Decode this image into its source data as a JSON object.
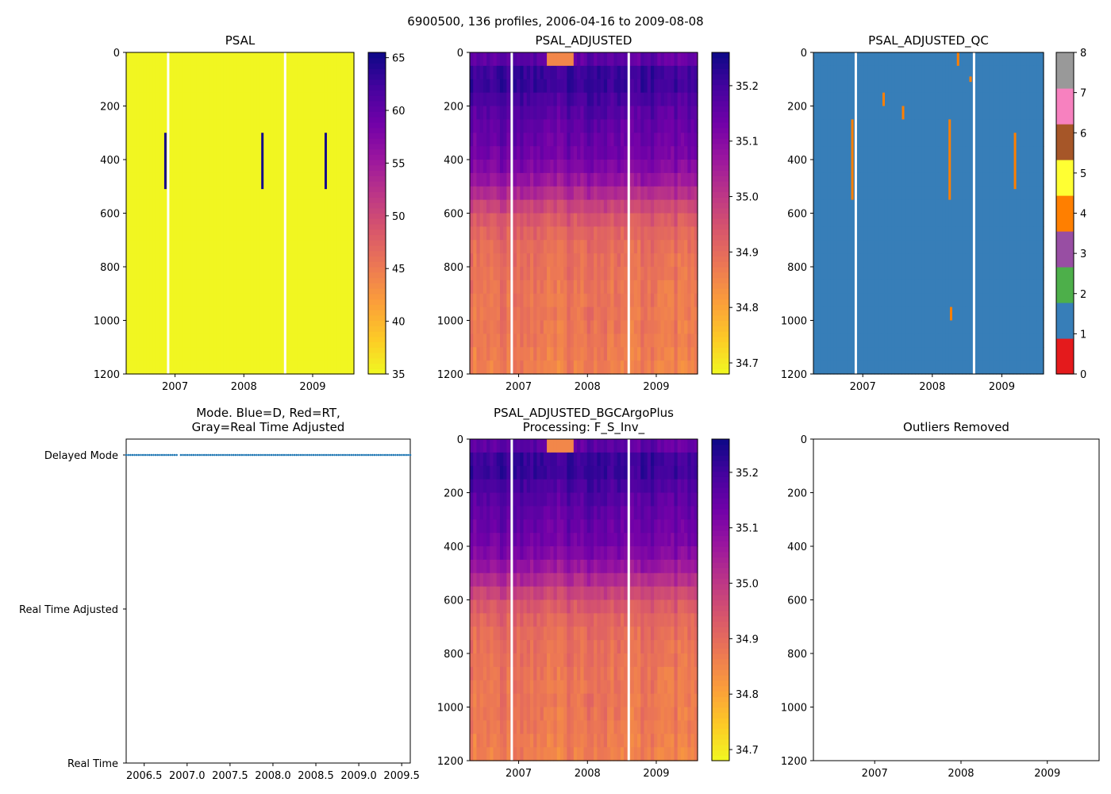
{
  "chart_data": {
    "suptitle": "6900500, 136 profiles, 2006-04-16 to 2009-08-08",
    "colormaps": {
      "plasma_r": [
        "#f0f921",
        "#fdca26",
        "#fb9f3a",
        "#ed7953",
        "#d8576b",
        "#bd3786",
        "#9c179e",
        "#7201a8",
        "#46039f",
        "#0d0887"
      ],
      "qc": [
        "#e41a1c",
        "#377eb8",
        "#4daf4a",
        "#984ea3",
        "#ff7f00",
        "#ffff33",
        "#a65628",
        "#f781bf",
        "#999999"
      ]
    },
    "panels": [
      {
        "id": "psal",
        "type": "heatmap",
        "title": "PSAL",
        "ylim": [
          1200,
          0
        ],
        "yticks": [
          "0",
          "200",
          "400",
          "600",
          "800",
          "1000",
          "1200"
        ],
        "xlim": [
          2006.29,
          2009.6
        ],
        "xticks": [
          "2007",
          "2008",
          "2009"
        ],
        "xtick_values": [
          2007,
          2008,
          2009
        ],
        "fill_value": 35.2,
        "gaps_x": [
          2006.9,
          2008.6
        ],
        "spikes": [
          {
            "x": 2006.86,
            "depth": [
              300,
              510
            ],
            "value": 65
          },
          {
            "x": 2008.27,
            "depth": [
              300,
              510
            ],
            "value": 65
          },
          {
            "x": 2009.19,
            "depth": [
              300,
              510
            ],
            "value": 65
          }
        ],
        "colorbar": {
          "cmap": "plasma_r",
          "vmin": 35,
          "vmax": 65.5,
          "ticks": [
            35,
            40,
            45,
            50,
            55,
            60,
            65
          ],
          "tick_labels": [
            "35",
            "40",
            "45",
            "50",
            "55",
            "60",
            "65"
          ]
        }
      },
      {
        "id": "psal_adjusted",
        "type": "heatmap",
        "title": "PSAL_ADJUSTED",
        "ylim": [
          1200,
          0
        ],
        "yticks": [
          "0",
          "200",
          "400",
          "600",
          "800",
          "1000",
          "1200"
        ],
        "xlim": [
          2006.29,
          2009.6
        ],
        "xticks": [
          "2007",
          "2008",
          "2009"
        ],
        "xtick_values": [
          2007,
          2008,
          2009
        ],
        "profile_depths": [
          0,
          50,
          100,
          150,
          250,
          350,
          450,
          500,
          550,
          600,
          650,
          700,
          800,
          900,
          1000,
          1100,
          1200
        ],
        "profile_values": [
          35.12,
          35.2,
          35.22,
          35.2,
          35.16,
          35.14,
          35.1,
          35.05,
          35.0,
          34.95,
          34.92,
          34.9,
          34.89,
          34.88,
          34.88,
          34.87,
          34.86
        ],
        "gaps_x": [
          2006.9,
          2008.6
        ],
        "colorbar": {
          "cmap": "plasma_r",
          "vmin": 34.68,
          "vmax": 35.26,
          "ticks": [
            34.7,
            34.8,
            34.9,
            35.0,
            35.1,
            35.2
          ],
          "tick_labels": [
            "34.7",
            "34.8",
            "34.9",
            "35.0",
            "35.1",
            "35.2"
          ]
        }
      },
      {
        "id": "psal_adjusted_qc",
        "type": "heatmap",
        "title": "PSAL_ADJUSTED_QC",
        "ylim": [
          1200,
          0
        ],
        "yticks": [
          "0",
          "200",
          "400",
          "600",
          "800",
          "1000",
          "1200"
        ],
        "xlim": [
          2006.29,
          2009.6
        ],
        "xticks": [
          "2007",
          "2008",
          "2009"
        ],
        "xtick_values": [
          2007,
          2008,
          2009
        ],
        "fill_value": 1,
        "gaps_x": [
          2006.9,
          2008.6
        ],
        "flags": [
          {
            "x": 2006.85,
            "depth": [
              250,
              550
            ],
            "value": 4
          },
          {
            "x": 2007.3,
            "depth": [
              150,
              200
            ],
            "value": 4
          },
          {
            "x": 2007.58,
            "depth": [
              200,
              250
            ],
            "value": 4
          },
          {
            "x": 2008.25,
            "depth": [
              250,
              550
            ],
            "value": 4
          },
          {
            "x": 2008.27,
            "depth": [
              950,
              1000
            ],
            "value": 4
          },
          {
            "x": 2008.37,
            "depth": [
              0,
              50
            ],
            "value": 4
          },
          {
            "x": 2008.55,
            "depth": [
              90,
              110
            ],
            "value": 4
          },
          {
            "x": 2009.19,
            "depth": [
              300,
              510
            ],
            "value": 4
          }
        ],
        "colorbar": {
          "cmap": "qc",
          "vmin": 0,
          "vmax": 8,
          "ticks": [
            0,
            1,
            2,
            3,
            4,
            5,
            6,
            7,
            8
          ],
          "tick_labels": [
            "0",
            "1",
            "2",
            "3",
            "4",
            "5",
            "6",
            "7",
            "8"
          ]
        }
      },
      {
        "id": "mode",
        "type": "scatter",
        "title": "Mode. Blue=D, Red=RT,",
        "title2": "Gray=Real Time Adjusted",
        "xlim": [
          2006.29,
          2009.6
        ],
        "xticks": [
          "2006.5",
          "2007.0",
          "2007.5",
          "2008.0",
          "2008.5",
          "2009.0",
          "2009.5"
        ],
        "xtick_values": [
          2006.5,
          2007.0,
          2007.5,
          2008.0,
          2008.5,
          2009.0,
          2009.5
        ],
        "ycategories": [
          "Delayed Mode",
          "Real Time Adjusted",
          "Real Time"
        ],
        "series": [
          {
            "name": "D",
            "color": "#1f77b4",
            "y": "Delayed Mode",
            "x_start": 2006.29,
            "x_end": 2009.6,
            "n": 136
          }
        ]
      },
      {
        "id": "psal_adjusted_bgc",
        "type": "heatmap",
        "title": "PSAL_ADJUSTED_BGCArgoPlus",
        "title2": "Processing: F_S_Inv_",
        "ylim": [
          1200,
          0
        ],
        "yticks": [
          "0",
          "200",
          "400",
          "600",
          "800",
          "1000",
          "1200"
        ],
        "xlim": [
          2006.29,
          2009.6
        ],
        "xticks": [
          "2007",
          "2008",
          "2009"
        ],
        "xtick_values": [
          2007,
          2008,
          2009
        ],
        "profile_depths": [
          0,
          50,
          100,
          150,
          250,
          350,
          450,
          500,
          550,
          600,
          650,
          700,
          800,
          900,
          1000,
          1100,
          1200
        ],
        "profile_values": [
          35.12,
          35.2,
          35.22,
          35.2,
          35.16,
          35.14,
          35.1,
          35.05,
          35.0,
          34.95,
          34.92,
          34.9,
          34.89,
          34.88,
          34.88,
          34.87,
          34.86
        ],
        "gaps_x": [
          2006.9,
          2008.6
        ],
        "colorbar": {
          "cmap": "plasma_r",
          "vmin": 34.68,
          "vmax": 35.26,
          "ticks": [
            34.7,
            34.8,
            34.9,
            35.0,
            35.1,
            35.2
          ],
          "tick_labels": [
            "34.7",
            "34.8",
            "34.9",
            "35.0",
            "35.1",
            "35.2"
          ]
        }
      },
      {
        "id": "outliers",
        "type": "empty",
        "title": "Outliers Removed",
        "ylim": [
          1200,
          0
        ],
        "yticks": [
          "0",
          "200",
          "400",
          "600",
          "800",
          "1000",
          "1200"
        ],
        "xlim": [
          2006.29,
          2009.6
        ],
        "xticks": [
          "2007",
          "2008",
          "2009"
        ],
        "xtick_values": [
          2007,
          2008,
          2009
        ]
      }
    ]
  }
}
